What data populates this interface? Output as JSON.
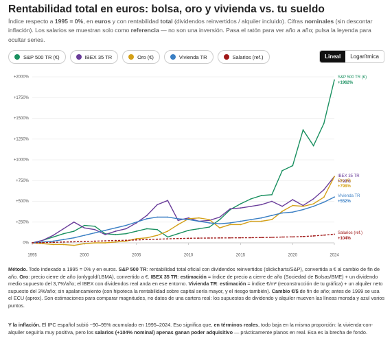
{
  "header": {
    "title": "Rentabilidad total en euros: bolsa, oro y vivienda vs. tu sueldo",
    "subtitle": [
      {
        "text": "Índice respecto a ",
        "bold": false
      },
      {
        "text": "1995 = 0%",
        "bold": true
      },
      {
        "text": ", en ",
        "bold": false
      },
      {
        "text": "euros",
        "bold": true
      },
      {
        "text": " y con rentabilidad ",
        "bold": false
      },
      {
        "text": "total",
        "bold": true
      },
      {
        "text": " (dividendos reinvertidos / alquiler incluido). Cifras ",
        "bold": false
      },
      {
        "text": "nominales",
        "bold": true
      },
      {
        "text": " (sin descontar inflación). Los salarios se muestran solo como ",
        "bold": false
      },
      {
        "text": "referencia",
        "bold": true
      },
      {
        "text": " — no son una inversión. Pasa el ratón para ver año a año; pulsa la leyenda para ocultar series.",
        "bold": false
      }
    ]
  },
  "scale_options": [
    "Lineal",
    "Logarítmica"
  ],
  "chart_data": {
    "type": "line",
    "log_scale": false,
    "grid": true,
    "x": [
      1995,
      1996,
      1997,
      1998,
      1999,
      2000,
      2001,
      2002,
      2003,
      2004,
      2005,
      2006,
      2007,
      2008,
      2009,
      2010,
      2011,
      2012,
      2013,
      2014,
      2015,
      2016,
      2017,
      2018,
      2019,
      2020,
      2021,
      2022,
      2023,
      2024
    ],
    "xlim": [
      1995,
      2024
    ],
    "xticks": [
      1995,
      2000,
      2005,
      2010,
      2015,
      2020,
      2024
    ],
    "ylim": [
      0,
      2000
    ],
    "yticks": [
      {
        "value": 0,
        "label": "0%"
      },
      {
        "value": 250,
        "label": "+250%"
      },
      {
        "value": 500,
        "label": "+500%"
      },
      {
        "value": 750,
        "label": "+750%"
      },
      {
        "value": 1000,
        "label": "+1000%"
      },
      {
        "value": 1250,
        "label": "+1250%"
      },
      {
        "value": 1500,
        "label": "+1500%"
      },
      {
        "value": 1750,
        "label": "+1750%"
      },
      {
        "value": 2000,
        "label": "+2000%"
      }
    ],
    "series": [
      {
        "name": "S&P 500 TR (€)",
        "color": "#1a9060",
        "dashed": false,
        "values": [
          0,
          30,
          70,
          110,
          140,
          210,
          200,
          110,
          100,
          110,
          140,
          170,
          160,
          70,
          110,
          150,
          170,
          190,
          280,
          400,
          470,
          530,
          570,
          580,
          870,
          930,
          1360,
          1170,
          1440,
          1962
        ],
        "value_labels": [
          null,
          null,
          null,
          null,
          null,
          null,
          null,
          null,
          null,
          null,
          null,
          null,
          null,
          null,
          null,
          null,
          null,
          null,
          null,
          null,
          null,
          null,
          null,
          null,
          null,
          null,
          null,
          null,
          null,
          "+1962%"
        ]
      },
      {
        "name": "IBEX 35 TR",
        "color": "#6a3d9a",
        "dashed": false,
        "values": [
          0,
          30,
          90,
          170,
          250,
          180,
          160,
          100,
          140,
          170,
          240,
          330,
          460,
          510,
          270,
          300,
          260,
          270,
          310,
          410,
          420,
          440,
          460,
          500,
          440,
          520,
          450,
          530,
          640,
          799
        ],
        "value_labels": [
          null,
          null,
          null,
          null,
          null,
          null,
          null,
          null,
          null,
          null,
          null,
          null,
          null,
          null,
          null,
          null,
          null,
          null,
          null,
          null,
          null,
          null,
          null,
          null,
          null,
          null,
          null,
          null,
          null,
          "+799%"
        ]
      },
      {
        "name": "Oro (€)",
        "color": "#d4a017",
        "dashed": false,
        "values": [
          0,
          -10,
          -20,
          -20,
          -30,
          -10,
          0,
          0,
          10,
          20,
          50,
          60,
          90,
          140,
          220,
          290,
          300,
          280,
          180,
          220,
          220,
          260,
          260,
          280,
          380,
          450,
          440,
          470,
          550,
          798
        ],
        "value_labels": [
          null,
          null,
          null,
          null,
          null,
          null,
          null,
          null,
          null,
          null,
          null,
          null,
          null,
          null,
          null,
          null,
          null,
          null,
          null,
          null,
          null,
          null,
          null,
          null,
          null,
          null,
          null,
          null,
          null,
          "+798%"
        ]
      },
      {
        "name": "Vivienda TR",
        "color": "#3a7fc4",
        "dashed": false,
        "values": [
          0,
          10,
          20,
          40,
          60,
          90,
          120,
          150,
          180,
          210,
          250,
          290,
          310,
          310,
          290,
          280,
          260,
          240,
          230,
          240,
          260,
          280,
          300,
          330,
          360,
          370,
          400,
          440,
          490,
          552
        ],
        "value_labels": [
          null,
          null,
          null,
          null,
          null,
          null,
          null,
          null,
          null,
          null,
          null,
          null,
          null,
          null,
          null,
          null,
          null,
          null,
          null,
          null,
          null,
          null,
          null,
          null,
          null,
          null,
          null,
          null,
          null,
          "+552%"
        ]
      },
      {
        "name": "Salarios (ref.)",
        "color": "#a01818",
        "dashed": true,
        "values": [
          0,
          3,
          6,
          10,
          13,
          17,
          20,
          24,
          28,
          31,
          35,
          40,
          44,
          48,
          52,
          55,
          57,
          58,
          59,
          60,
          61,
          62,
          64,
          66,
          70,
          72,
          76,
          83,
          93,
          104
        ],
        "value_labels": [
          null,
          null,
          null,
          null,
          null,
          null,
          null,
          null,
          null,
          null,
          null,
          null,
          null,
          null,
          null,
          null,
          null,
          null,
          null,
          null,
          null,
          null,
          null,
          null,
          null,
          null,
          null,
          null,
          null,
          "+104%"
        ]
      }
    ]
  },
  "notes": {
    "method": [
      {
        "text": "Método.",
        "bold": true
      },
      {
        "text": " Todo indexado a 1995 = 0% y en euros. ",
        "bold": false
      },
      {
        "text": "S&P 500 TR",
        "bold": true
      },
      {
        "text": ": rentabilidad total oficial con dividendos reinvertidos (slickcharts/S&P), convertida a € al cambio de fin de año. ",
        "bold": false
      },
      {
        "text": "Oro",
        "bold": true
      },
      {
        "text": ": precio cierre de año (onlygold/LBMA), convertido a €. ",
        "bold": false
      },
      {
        "text": "IBEX 35 TR",
        "bold": true
      },
      {
        "text": ": ",
        "bold": false
      },
      {
        "text": "estimación",
        "bold": true
      },
      {
        "text": " = índice de precio a cierre de año (Sociedad de Bolsas/BME) + un dividendo medio supuesto del 3,7%/año; el IBEX con dividendos real anda en ese entorno. ",
        "bold": false
      },
      {
        "text": "Vivienda TR",
        "bold": true
      },
      {
        "text": ": ",
        "bold": false
      },
      {
        "text": "estimación",
        "bold": true
      },
      {
        "text": " = índice €/m² (reconstrucción de tu gráfica) + un alquiler neto supuesto del 3%/año; sin apalancamiento (con hipoteca la rentabilidad sobre capital sería mayor, y el riesgo también). ",
        "bold": false
      },
      {
        "text": "Cambio €/$",
        "bold": true
      },
      {
        "text": " de fin de año; antes de 1999 se usa el ECU (aprox). Son estimaciones para comparar magnitudes, no datos de una cartera real: los supuestos de dividendo y alquiler mueven las líneas morada y azul varios puntos.",
        "bold": false
      }
    ],
    "inflation": [
      {
        "text": "Y la inflación.",
        "bold": true
      },
      {
        "text": " El IPC español subió ~90–95% acumulado en 1995–2024. Eso significa que, ",
        "bold": false
      },
      {
        "text": "en términos reales",
        "bold": true
      },
      {
        "text": ", todo baja en la misma proporción: la vivienda-con-alquiler seguiría muy positiva, pero los ",
        "bold": false
      },
      {
        "text": "salarios (+104% nominal) apenas ganan poder adquisitivo",
        "bold": true
      },
      {
        "text": " — prácticamente planos en real. Esa es la brecha de fondo.",
        "bold": false
      }
    ]
  }
}
